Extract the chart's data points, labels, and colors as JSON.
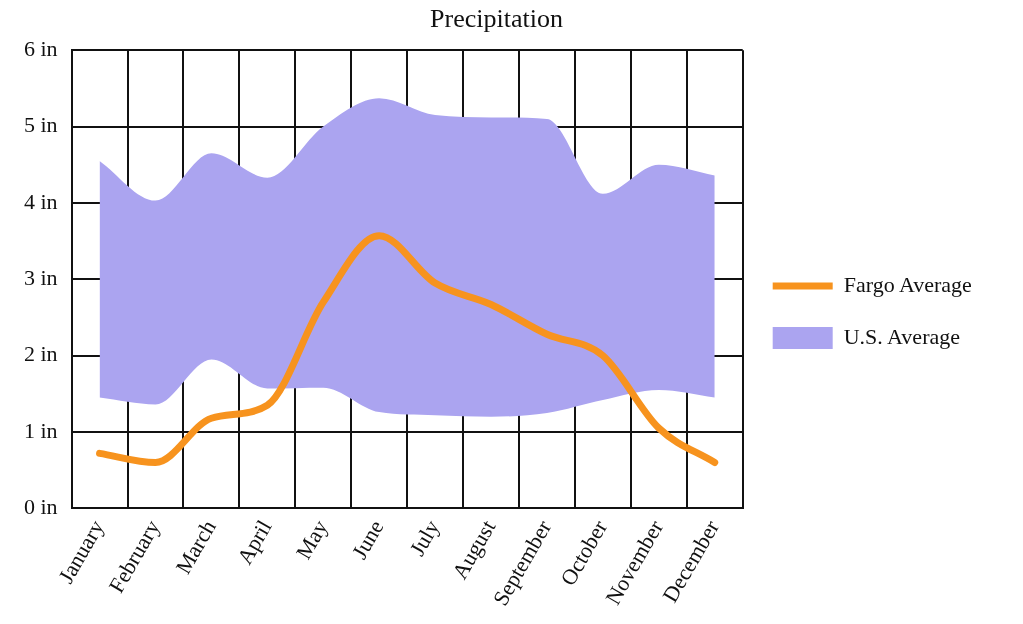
{
  "chart_data": {
    "type": "line",
    "title": "Precipitation",
    "categories": [
      "January",
      "February",
      "March",
      "April",
      "May",
      "June",
      "July",
      "August",
      "September",
      "October",
      "November",
      "December"
    ],
    "series": [
      {
        "name": "Fargo Average",
        "type": "line",
        "color": "#f7931e",
        "values": [
          0.72,
          0.6,
          1.18,
          1.35,
          2.7,
          3.57,
          2.95,
          2.67,
          2.28,
          2.0,
          1.05,
          0.6
        ]
      },
      {
        "name": "U.S. Average",
        "type": "area",
        "color": "#aba4f0",
        "values": [
          null,
          null,
          null,
          null,
          null,
          null,
          null,
          null,
          null,
          null,
          null,
          null
        ],
        "lower": [
          1.45,
          1.36,
          1.95,
          1.57,
          1.58,
          1.26,
          1.22,
          1.2,
          1.25,
          1.42,
          1.55,
          1.45
        ],
        "upper": [
          4.55,
          4.03,
          4.65,
          4.33,
          5.0,
          5.37,
          5.15,
          5.12,
          5.1,
          4.12,
          4.5,
          4.36
        ]
      }
    ],
    "ylim": [
      0,
      6
    ],
    "yticks": [
      {
        "value": 0,
        "label": "0 in"
      },
      {
        "value": 1,
        "label": "1 in"
      },
      {
        "value": 2,
        "label": "2 in"
      },
      {
        "value": 3,
        "label": "3 in"
      },
      {
        "value": 4,
        "label": "4 in"
      },
      {
        "value": 5,
        "label": "5 in"
      },
      {
        "value": 6,
        "label": "6 in"
      }
    ],
    "grid": true,
    "legend": "right",
    "marker": "none"
  }
}
